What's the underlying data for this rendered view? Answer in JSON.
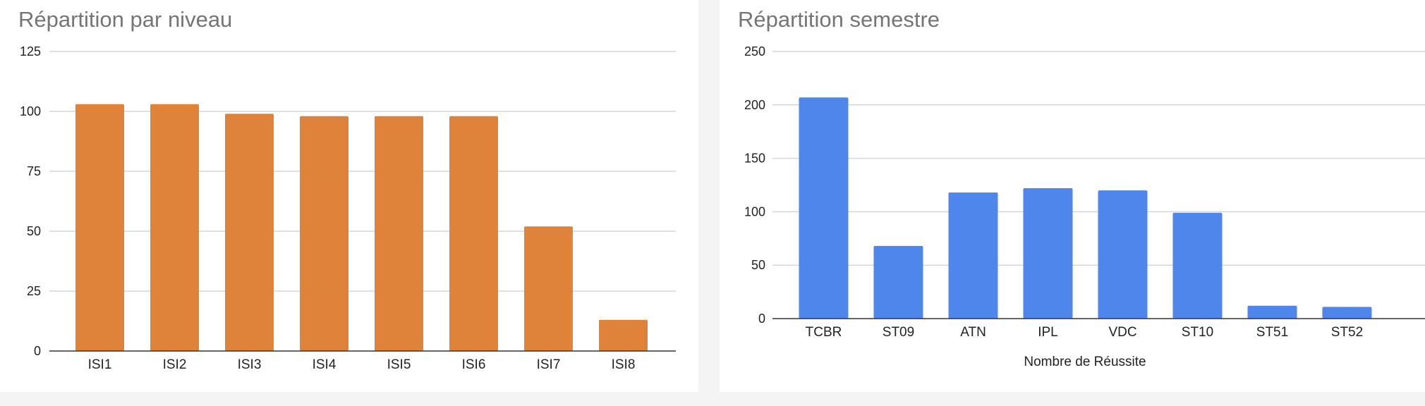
{
  "chart_data": [
    {
      "type": "bar",
      "title": "Répartition par niveau",
      "xlabel": "",
      "ylabel": "",
      "categories": [
        "ISI1",
        "ISI2",
        "ISI3",
        "ISI4",
        "ISI5",
        "ISI6",
        "ISI7",
        "ISI8"
      ],
      "values": [
        103,
        103,
        99,
        98,
        98,
        98,
        52,
        13
      ],
      "ylim": [
        0,
        125
      ],
      "yticks": [
        0,
        25,
        50,
        75,
        100,
        125
      ],
      "grid": true,
      "legend": "none",
      "color": "#de8339"
    },
    {
      "type": "bar",
      "title": "Répartition semestre",
      "xlabel": "Nombre de Réussite",
      "ylabel": "",
      "categories": [
        "TCBR",
        "ST09",
        "ATN",
        "IPL",
        "VDC",
        "ST10",
        "ST51",
        "ST52"
      ],
      "values": [
        207,
        68,
        118,
        122,
        120,
        99,
        12,
        11
      ],
      "ylim": [
        0,
        250
      ],
      "yticks": [
        0,
        50,
        100,
        150,
        200,
        250
      ],
      "grid": true,
      "legend": "none",
      "color": "#4f86ec"
    }
  ]
}
